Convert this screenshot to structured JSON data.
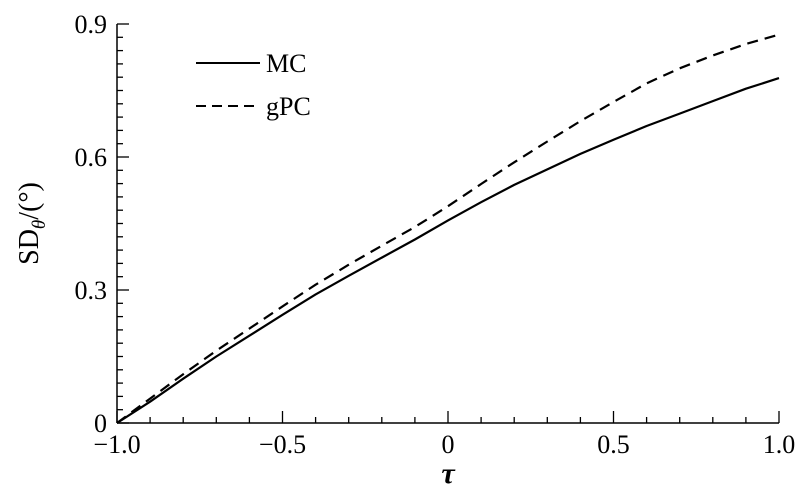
{
  "chart_data": {
    "type": "line",
    "title": "",
    "xlabel": "τ",
    "ylabel": {
      "main": "SD",
      "sub": "θ",
      "unit": "/(°)"
    },
    "xlim": [
      -1.0,
      1.0
    ],
    "ylim": [
      0,
      0.9
    ],
    "xticks": [
      -1.0,
      -0.5,
      0,
      0.5,
      1.0
    ],
    "xtick_labels": [
      "−1.0",
      "−0.5",
      "0",
      "0.5",
      "1.0"
    ],
    "yticks": [
      0,
      0.3,
      0.6,
      0.9
    ],
    "ytick_labels": [
      "0",
      "0.3",
      "0.6",
      "0.9"
    ],
    "grid": false,
    "legend_position": "top-left",
    "series": [
      {
        "name": "MC",
        "style": "solid",
        "color": "#000000",
        "x": [
          -1.0,
          -0.9,
          -0.8,
          -0.7,
          -0.6,
          -0.5,
          -0.4,
          -0.3,
          -0.2,
          -0.1,
          0,
          0.1,
          0.2,
          0.3,
          0.4,
          0.5,
          0.6,
          0.7,
          0.8,
          0.9,
          1.0
        ],
        "y": [
          0,
          0.048,
          0.1,
          0.15,
          0.197,
          0.244,
          0.29,
          0.332,
          0.373,
          0.414,
          0.457,
          0.498,
          0.537,
          0.572,
          0.607,
          0.639,
          0.67,
          0.698,
          0.726,
          0.754,
          0.778
        ]
      },
      {
        "name": "gPC",
        "style": "dashed",
        "color": "#000000",
        "x": [
          -1.0,
          -0.9,
          -0.8,
          -0.7,
          -0.6,
          -0.5,
          -0.4,
          -0.3,
          -0.2,
          -0.1,
          0,
          0.1,
          0.2,
          0.3,
          0.4,
          0.5,
          0.6,
          0.7,
          0.8,
          0.9,
          1.0
        ],
        "y": [
          0,
          0.055,
          0.11,
          0.163,
          0.213,
          0.263,
          0.312,
          0.357,
          0.4,
          0.442,
          0.489,
          0.539,
          0.588,
          0.635,
          0.681,
          0.724,
          0.766,
          0.8,
          0.829,
          0.855,
          0.876
        ]
      }
    ]
  }
}
